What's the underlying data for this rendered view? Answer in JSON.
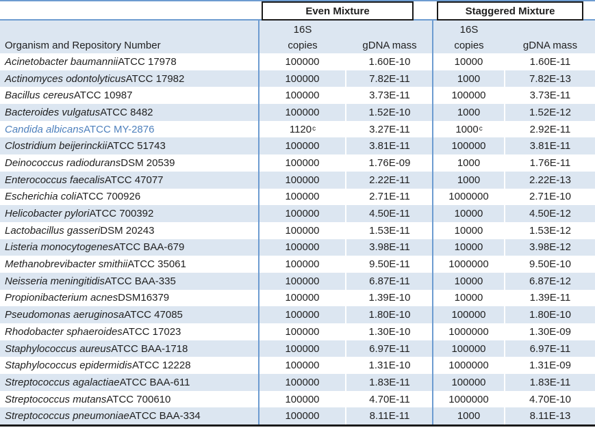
{
  "header": {
    "even_group": "Even Mixture",
    "staggered_group": "Staggered Mixture",
    "organism_col": "Organism and Repository Number",
    "sub_16s": "16S",
    "sub_copies": "copies",
    "sub_gdna": "gDNA mass"
  },
  "colors": {
    "rule_blue": "#6c9bd0",
    "band_fill": "#dce6f1",
    "highlight_text": "#4f81bd",
    "rule_black": "#191919"
  },
  "rows": [
    {
      "name": "Acinetobacter baumannii",
      "repo": "ATCC 17978",
      "even_copies": "100000",
      "even_sup": "",
      "even_gdna": "1.60E-10",
      "stag_copies": "10000",
      "stag_sup": "",
      "stag_gdna": "1.60E-11",
      "highlight": false
    },
    {
      "name": "Actinomyces odontolyticus",
      "repo": "ATCC 17982",
      "even_copies": "100000",
      "even_sup": "",
      "even_gdna": "7.82E-11",
      "stag_copies": "1000",
      "stag_sup": "",
      "stag_gdna": "7.82E-13",
      "highlight": false
    },
    {
      "name": "Bacillus cereus",
      "repo": "ATCC 10987",
      "even_copies": "100000",
      "even_sup": "",
      "even_gdna": "3.73E-11",
      "stag_copies": "100000",
      "stag_sup": "",
      "stag_gdna": "3.73E-11",
      "highlight": false
    },
    {
      "name": "Bacteroides vulgatus",
      "repo": "ATCC 8482",
      "even_copies": "100000",
      "even_sup": "",
      "even_gdna": "1.52E-10",
      "stag_copies": "1000",
      "stag_sup": "",
      "stag_gdna": "1.52E-12",
      "highlight": false
    },
    {
      "name": "Candida albicans",
      "repo": "ATCC MY-2876",
      "even_copies": "1120",
      "even_sup": "c",
      "even_gdna": "3.27E-11",
      "stag_copies": "1000",
      "stag_sup": "c",
      "stag_gdna": "2.92E-11",
      "highlight": true
    },
    {
      "name": "Clostridium beijerinckii",
      "repo": "ATCC 51743",
      "even_copies": "100000",
      "even_sup": "",
      "even_gdna": "3.81E-11",
      "stag_copies": "100000",
      "stag_sup": "",
      "stag_gdna": "3.81E-11",
      "highlight": false
    },
    {
      "name": "Deinococcus radiodurans",
      "repo": "DSM 20539",
      "even_copies": "100000",
      "even_sup": "",
      "even_gdna": "1.76E-09",
      "stag_copies": "1000",
      "stag_sup": "",
      "stag_gdna": "1.76E-11",
      "highlight": false
    },
    {
      "name": "Enterococcus faecalis",
      "repo": "ATCC 47077",
      "even_copies": "100000",
      "even_sup": "",
      "even_gdna": "2.22E-11",
      "stag_copies": "1000",
      "stag_sup": "",
      "stag_gdna": "2.22E-13",
      "highlight": false
    },
    {
      "name": "Escherichia coli",
      "repo": "ATCC 700926",
      "even_copies": "100000",
      "even_sup": "",
      "even_gdna": "2.71E-11",
      "stag_copies": "1000000",
      "stag_sup": "",
      "stag_gdna": "2.71E-10",
      "highlight": false
    },
    {
      "name": "Helicobacter pylori",
      "repo": "ATCC 700392",
      "even_copies": "100000",
      "even_sup": "",
      "even_gdna": "4.50E-11",
      "stag_copies": "10000",
      "stag_sup": "",
      "stag_gdna": "4.50E-12",
      "highlight": false
    },
    {
      "name": "Lactobacillus gasseri",
      "repo": "DSM 20243",
      "even_copies": "100000",
      "even_sup": "",
      "even_gdna": "1.53E-11",
      "stag_copies": "10000",
      "stag_sup": "",
      "stag_gdna": "1.53E-12",
      "highlight": false
    },
    {
      "name": "Listeria monocytogenes",
      "repo": "ATCC BAA-679",
      "even_copies": "100000",
      "even_sup": "",
      "even_gdna": "3.98E-11",
      "stag_copies": "10000",
      "stag_sup": "",
      "stag_gdna": "3.98E-12",
      "highlight": false
    },
    {
      "name": "Methanobrevibacter smithii",
      "repo": "ATCC 35061",
      "even_copies": "100000",
      "even_sup": "",
      "even_gdna": "9.50E-11",
      "stag_copies": "1000000",
      "stag_sup": "",
      "stag_gdna": "9.50E-10",
      "highlight": false
    },
    {
      "name": "Neisseria meningitidis",
      "repo": "ATCC BAA-335",
      "even_copies": "100000",
      "even_sup": "",
      "even_gdna": "6.87E-11",
      "stag_copies": "10000",
      "stag_sup": "",
      "stag_gdna": "6.87E-12",
      "highlight": false
    },
    {
      "name": "Propionibacterium acnes",
      "repo": "DSM16379",
      "even_copies": "100000",
      "even_sup": "",
      "even_gdna": "1.39E-10",
      "stag_copies": "10000",
      "stag_sup": "",
      "stag_gdna": "1.39E-11",
      "highlight": false
    },
    {
      "name": "Pseudomonas aeruginosa",
      "repo": "ATCC 47085",
      "even_copies": "100000",
      "even_sup": "",
      "even_gdna": "1.80E-10",
      "stag_copies": "100000",
      "stag_sup": "",
      "stag_gdna": "1.80E-10",
      "highlight": false
    },
    {
      "name": "Rhodobacter sphaeroides",
      "repo": "ATCC 17023",
      "even_copies": "100000",
      "even_sup": "",
      "even_gdna": "1.30E-10",
      "stag_copies": "1000000",
      "stag_sup": "",
      "stag_gdna": "1.30E-09",
      "highlight": false
    },
    {
      "name": "Staphylococcus aureus",
      "repo": "ATCC BAA-1718",
      "even_copies": "100000",
      "even_sup": "",
      "even_gdna": "6.97E-11",
      "stag_copies": "100000",
      "stag_sup": "",
      "stag_gdna": "6.97E-11",
      "highlight": false
    },
    {
      "name": "Staphylococcus epidermidis",
      "repo": "ATCC 12228",
      "even_copies": "100000",
      "even_sup": "",
      "even_gdna": "1.31E-10",
      "stag_copies": "1000000",
      "stag_sup": "",
      "stag_gdna": "1.31E-09",
      "highlight": false
    },
    {
      "name": "Streptococcus agalactiae",
      "repo": "ATCC BAA-611",
      "even_copies": "100000",
      "even_sup": "",
      "even_gdna": "1.83E-11",
      "stag_copies": "100000",
      "stag_sup": "",
      "stag_gdna": "1.83E-11",
      "highlight": false
    },
    {
      "name": "Streptococcus mutans",
      "repo": "ATCC 700610",
      "even_copies": "100000",
      "even_sup": "",
      "even_gdna": "4.70E-11",
      "stag_copies": "1000000",
      "stag_sup": "",
      "stag_gdna": "4.70E-10",
      "highlight": false
    },
    {
      "name": "Streptococcus pneumoniae",
      "repo": "ATCC BAA-334",
      "even_copies": "100000",
      "even_sup": "",
      "even_gdna": "8.11E-11",
      "stag_copies": "1000",
      "stag_sup": "",
      "stag_gdna": "8.11E-13",
      "highlight": false
    }
  ]
}
